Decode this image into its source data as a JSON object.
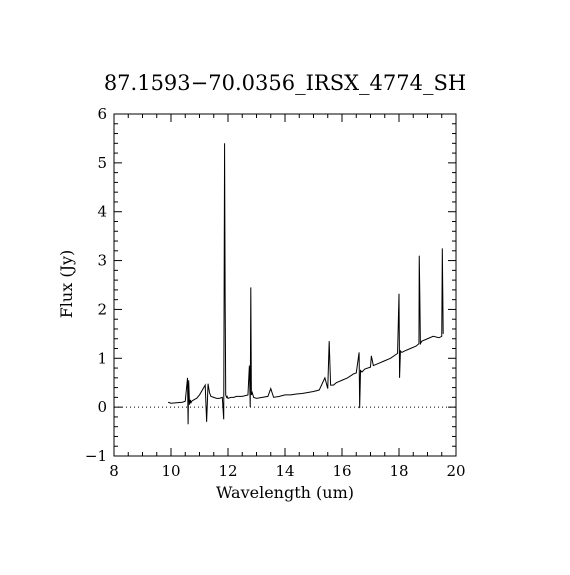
{
  "chart_data": {
    "type": "line",
    "title": "87.1593−70.0356_IRSX_4774_SH",
    "xlabel": "Wavelength (um)",
    "ylabel": "Flux (Jy)",
    "xlim": [
      8,
      20
    ],
    "ylim": [
      -1,
      6
    ],
    "xticks": [
      8,
      10,
      12,
      14,
      16,
      18,
      20
    ],
    "yticks": [
      -1,
      0,
      1,
      2,
      3,
      4,
      5,
      6
    ],
    "xtick_labels": [
      "8",
      "10",
      "12",
      "14",
      "16",
      "18",
      "20"
    ],
    "ytick_labels": [
      "−1",
      "0",
      "1",
      "2",
      "3",
      "4",
      "5",
      "6"
    ],
    "zero_line": {
      "y": 0,
      "style": "dotted"
    },
    "grid": false,
    "line_color": "#000000",
    "series": [
      {
        "x": [
          9.9,
          10.0,
          10.2,
          10.4,
          10.5,
          10.58,
          10.6,
          10.62,
          10.65,
          10.68,
          10.7,
          10.72,
          10.8,
          10.9,
          11.0,
          11.1,
          11.2,
          11.25,
          11.3,
          11.35,
          11.4,
          11.5,
          11.6,
          11.7,
          11.8,
          11.85,
          11.88,
          11.9,
          11.92,
          11.95,
          11.97,
          12.0,
          12.1,
          12.2,
          12.3,
          12.5,
          12.7,
          12.75,
          12.78,
          12.8,
          12.82,
          12.85,
          12.9,
          13.0,
          13.2,
          13.4,
          13.5,
          13.6,
          13.8,
          14.0,
          14.2,
          14.4,
          14.6,
          14.8,
          15.0,
          15.2,
          15.4,
          15.5,
          15.55,
          15.6,
          15.7,
          15.8,
          16.0,
          16.2,
          16.4,
          16.5,
          16.6,
          16.62,
          16.65,
          16.7,
          16.8,
          17.0,
          17.03,
          17.1,
          17.3,
          17.5,
          17.7,
          17.9,
          17.95,
          18.0,
          18.02,
          18.05,
          18.1,
          18.2,
          18.4,
          18.6,
          18.7,
          18.71,
          18.73,
          18.75,
          18.8,
          19.0,
          19.2,
          19.4,
          19.5,
          19.52,
          19.55
        ],
        "y": [
          0.1,
          0.08,
          0.09,
          0.1,
          0.12,
          0.6,
          -0.35,
          0.55,
          0.05,
          0.15,
          0.08,
          0.12,
          0.15,
          0.18,
          0.25,
          0.35,
          0.45,
          -0.3,
          0.48,
          0.3,
          0.22,
          0.2,
          0.18,
          0.18,
          0.2,
          -0.25,
          5.4,
          2.2,
          0.25,
          0.2,
          0.22,
          0.18,
          0.2,
          0.2,
          0.22,
          0.22,
          0.25,
          0.85,
          0.0,
          2.45,
          0.25,
          0.3,
          0.2,
          0.18,
          0.2,
          0.22,
          0.38,
          0.2,
          0.22,
          0.25,
          0.25,
          0.27,
          0.28,
          0.3,
          0.32,
          0.35,
          0.6,
          0.38,
          1.35,
          0.45,
          0.45,
          0.5,
          0.55,
          0.6,
          0.68,
          0.7,
          1.12,
          -0.02,
          0.75,
          0.72,
          0.78,
          0.82,
          1.05,
          0.85,
          0.9,
          0.95,
          1.0,
          1.08,
          1.1,
          2.32,
          0.6,
          1.15,
          1.12,
          1.15,
          1.2,
          1.25,
          1.3,
          3.1,
          2.3,
          1.3,
          1.35,
          1.4,
          1.45,
          1.42,
          1.45,
          3.25,
          1.5
        ]
      }
    ]
  }
}
